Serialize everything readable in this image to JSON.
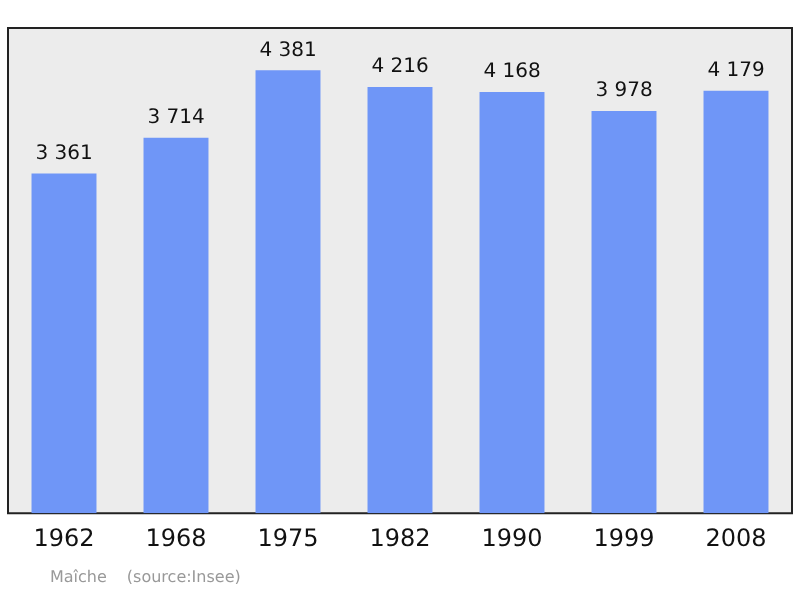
{
  "chart_data": {
    "type": "bar",
    "categories": [
      "1962",
      "1968",
      "1975",
      "1982",
      "1990",
      "1999",
      "2008"
    ],
    "values": [
      3361,
      3714,
      4381,
      4216,
      4168,
      3978,
      4179
    ],
    "value_labels": [
      "3 361",
      "3 714",
      "4 381",
      "4 216",
      "4 168",
      "3 978",
      "4 179"
    ],
    "color": "#6f96f7",
    "ylim": [
      0,
      4800
    ],
    "tick_labels": "x",
    "grid": false,
    "legend": false,
    "annotations": [
      "Maîche",
      "(source:Insee)"
    ]
  }
}
